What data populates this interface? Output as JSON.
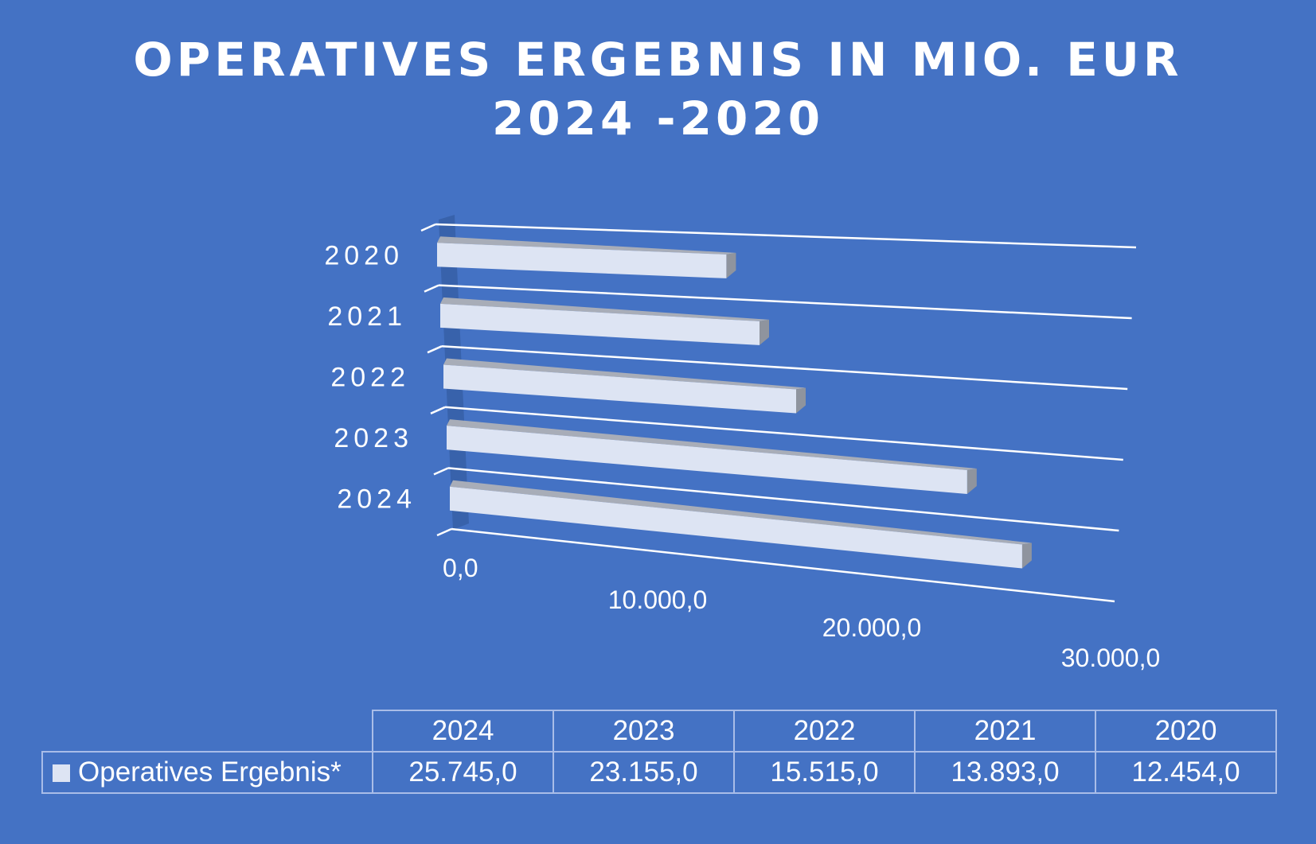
{
  "colors": {
    "background": "#4472c4",
    "bar_face": "#dde4f3",
    "bar_top": "#a8adb8",
    "bar_end": "#8f949e",
    "text": "#ffffff",
    "grid": "#ffffff",
    "table_border": "#a9bde8"
  },
  "chart_data": {
    "type": "bar",
    "orientation": "horizontal",
    "style": "3d",
    "title_lines": [
      "OPERATIVES ERGEBNIS IN MIO. EUR",
      "2024 -2020"
    ],
    "categories": [
      "2024",
      "2023",
      "2022",
      "2021",
      "2020"
    ],
    "series": [
      {
        "name": "Operatives Ergebnis*",
        "values": [
          25745.0,
          23155.0,
          15515.0,
          13893.0,
          12454.0
        ]
      }
    ],
    "category_labels": [
      "2020",
      "2021",
      "2022",
      "2023",
      "2024"
    ],
    "value_ticks": [
      "0,0",
      "10.000,0",
      "20.000,0",
      "30.000,0"
    ],
    "xlim": [
      0,
      30000
    ],
    "grid": true,
    "legend": "data-table",
    "data_table": {
      "headers": [
        "2024",
        "2023",
        "2022",
        "2021",
        "2020"
      ],
      "row_label": "Operatives Ergebnis*",
      "values": [
        "25.745,0",
        "23.155,0",
        "15.515,0",
        "13.893,0",
        "12.454,0"
      ]
    }
  }
}
